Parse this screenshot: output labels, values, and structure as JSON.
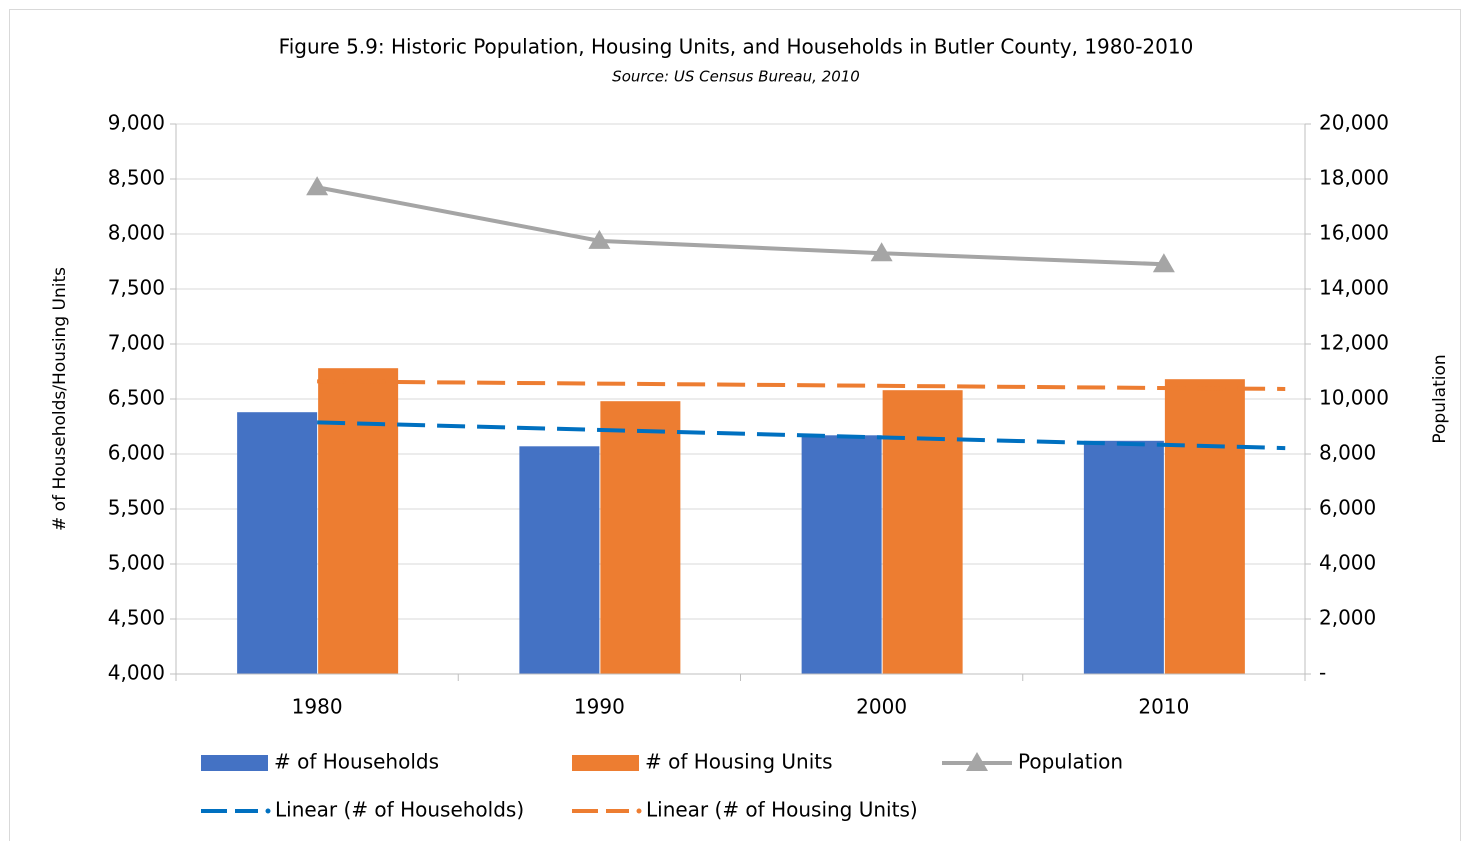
{
  "chart_data": {
    "type": "bar",
    "title": "Figure 5.9: Historic Population, Housing Units, and Households in Butler County, 1980-2010",
    "subtitle": "Source: US Census Bureau, 2010",
    "y_label": "# of Households/Housing Units",
    "y2_label": "Population",
    "categories": [
      "1980",
      "1990",
      "2000",
      "2010"
    ],
    "series": [
      {
        "name": "# of Households",
        "color": "#4472c4",
        "type": "bar",
        "values": [
          6380,
          6070,
          6170,
          6120
        ]
      },
      {
        "name": "# of Housing Units",
        "color": "#ed7d31",
        "type": "bar",
        "values": [
          6780,
          6480,
          6580,
          6680
        ]
      },
      {
        "name": "Population",
        "color": "#a5a5a5",
        "type": "line",
        "axis": "y2",
        "values": [
          17700,
          15750,
          15300,
          14900
        ]
      }
    ],
    "trendlines": [
      {
        "name": "Linear (# of Households)",
        "color": "#0070c0",
        "of": 0
      },
      {
        "name": "Linear (# of Housing Units)",
        "color": "#ed7d31",
        "of": 1
      }
    ],
    "ylim": [
      4000,
      9000
    ],
    "yticks": [
      {
        "value": 4000,
        "label": "4,000"
      },
      {
        "value": 4500,
        "label": "4,500"
      },
      {
        "value": 5000,
        "label": "5,000"
      },
      {
        "value": 5500,
        "label": "5,500"
      },
      {
        "value": 6000,
        "label": "6,000"
      },
      {
        "value": 6500,
        "label": "6,500"
      },
      {
        "value": 7000,
        "label": "7,000"
      },
      {
        "value": 7500,
        "label": "7,500"
      },
      {
        "value": 8000,
        "label": "8,000"
      },
      {
        "value": 8500,
        "label": "8,500"
      },
      {
        "value": 9000,
        "label": "9,000"
      }
    ],
    "y2lim": [
      0,
      20000
    ],
    "y2ticks": [
      {
        "value": 0,
        "label": "-"
      },
      {
        "value": 2000,
        "label": "2,000"
      },
      {
        "value": 4000,
        "label": "4,000"
      },
      {
        "value": 6000,
        "label": "6,000"
      },
      {
        "value": 8000,
        "label": "8,000"
      },
      {
        "value": 10000,
        "label": "10,000"
      },
      {
        "value": 12000,
        "label": "12,000"
      },
      {
        "value": 14000,
        "label": "14,000"
      },
      {
        "value": 16000,
        "label": "16,000"
      },
      {
        "value": 18000,
        "label": "18,000"
      },
      {
        "value": 20000,
        "label": "20,000"
      }
    ],
    "grid": true
  }
}
